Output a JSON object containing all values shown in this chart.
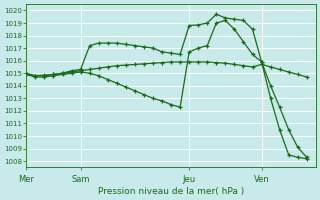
{
  "title": "Pression niveau de la mer( hPa )",
  "bg_color": "#c8eaea",
  "grid_color": "#ffffff",
  "line_color": "#1a6b1a",
  "ylim": [
    1007.5,
    1020.5
  ],
  "yticks": [
    1008,
    1009,
    1010,
    1011,
    1012,
    1013,
    1014,
    1015,
    1016,
    1017,
    1018,
    1019,
    1020
  ],
  "day_labels": [
    "Mer",
    "Sam",
    "Jeu",
    "Ven"
  ],
  "day_positions": [
    0,
    6,
    18,
    26
  ],
  "xlim": [
    0,
    32
  ],
  "line1_x": [
    0,
    1,
    2,
    3,
    4,
    5,
    6,
    7,
    8,
    9,
    10,
    11,
    12,
    13,
    14,
    15,
    16,
    17,
    18,
    19,
    20,
    21,
    22,
    23,
    24,
    25,
    26,
    27,
    28,
    29,
    30,
    31
  ],
  "line1_y": [
    1014.9,
    1014.8,
    1014.85,
    1014.9,
    1015.0,
    1015.1,
    1015.2,
    1015.3,
    1015.4,
    1015.5,
    1015.6,
    1015.65,
    1015.7,
    1015.75,
    1015.8,
    1015.85,
    1015.9,
    1015.9,
    1015.9,
    1015.9,
    1015.9,
    1015.85,
    1015.8,
    1015.7,
    1015.6,
    1015.5,
    1015.7,
    1015.5,
    1015.3,
    1015.1,
    1014.9,
    1014.7
  ],
  "line2_x": [
    0,
    1,
    2,
    3,
    4,
    5,
    6,
    7,
    8,
    9,
    10,
    11,
    12,
    13,
    14,
    15,
    16,
    17,
    18,
    19,
    20,
    21,
    22,
    23,
    24,
    25,
    26,
    27,
    28,
    29,
    30,
    31
  ],
  "line2_y": [
    1015.0,
    1014.8,
    1014.8,
    1014.9,
    1015.0,
    1015.2,
    1015.3,
    1017.2,
    1017.4,
    1017.4,
    1017.4,
    1017.3,
    1017.2,
    1017.1,
    1017.0,
    1016.7,
    1016.6,
    1016.5,
    1018.8,
    1018.85,
    1019.0,
    1019.7,
    1019.4,
    1019.3,
    1019.2,
    1018.5,
    1015.9,
    1014.0,
    1012.3,
    1010.5,
    1009.1,
    1008.3
  ],
  "line3_x": [
    0,
    1,
    2,
    3,
    4,
    5,
    6,
    7,
    8,
    9,
    10,
    11,
    12,
    13,
    14,
    15,
    16,
    17,
    18,
    19,
    20,
    21,
    22,
    23,
    24,
    25,
    26,
    27,
    28,
    29,
    30,
    31
  ],
  "line3_y": [
    1014.9,
    1014.7,
    1014.7,
    1014.8,
    1014.9,
    1015.0,
    1015.1,
    1015.0,
    1014.8,
    1014.5,
    1014.2,
    1013.9,
    1013.6,
    1013.3,
    1013.0,
    1012.8,
    1012.5,
    1012.3,
    1016.7,
    1017.0,
    1017.2,
    1019.0,
    1019.2,
    1018.5,
    1017.5,
    1016.5,
    1015.9,
    1013.0,
    1010.5,
    1008.5,
    1008.3,
    1008.2
  ]
}
